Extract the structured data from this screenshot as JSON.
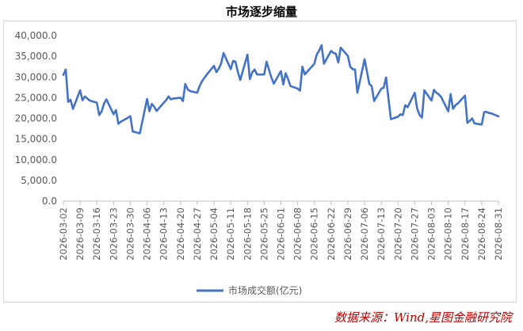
{
  "chart_data": {
    "type": "line",
    "title": "市场逐步缩量",
    "ylim": [
      0,
      40000
    ],
    "yticks": [
      "0.0",
      "5,000.0",
      "10,000.0",
      "15,000.0",
      "20,000.0",
      "25,000.0",
      "30,000.0",
      "35,000.0",
      "40,000.0"
    ],
    "grid": false,
    "legend": "bottom",
    "xtick_labels": [
      "2026-03-02",
      "2026-03-09",
      "2026-03-16",
      "2026-03-23",
      "2026-03-30",
      "2026-04-06",
      "2026-04-13",
      "2026-04-20",
      "2026-04-27",
      "2026-05-04",
      "2026-05-11",
      "2026-05-18",
      "2026-05-25",
      "2026-06-01",
      "2026-06-08",
      "2026-06-15",
      "2026-06-22",
      "2026-06-29",
      "2026-07-06",
      "2026-07-13",
      "2026-07-20",
      "2026-07-27",
      "2026-08-03",
      "2026-08-10",
      "2026-08-17",
      "2026-08-24",
      "2026-08-31"
    ],
    "line_color": "#4472c4",
    "series": [
      {
        "name": "市场成交额(亿元)",
        "x": [
          "2026-03-02",
          "2026-03-03",
          "2026-03-04",
          "2026-03-05",
          "2026-03-06",
          "2026-03-09",
          "2026-03-10",
          "2026-03-11",
          "2026-03-12",
          "2026-03-13",
          "2026-03-16",
          "2026-03-17",
          "2026-03-18",
          "2026-03-19",
          "2026-03-20",
          "2026-03-23",
          "2026-03-24",
          "2026-03-25",
          "2026-03-26",
          "2026-03-27",
          "2026-03-30",
          "2026-03-31",
          "2026-04-01",
          "2026-04-02",
          "2026-04-03",
          "2026-04-06",
          "2026-04-07",
          "2026-04-08",
          "2026-04-09",
          "2026-04-10",
          "2026-04-13",
          "2026-04-14",
          "2026-04-15",
          "2026-04-16",
          "2026-04-17",
          "2026-04-20",
          "2026-04-21",
          "2026-04-22",
          "2026-04-23",
          "2026-04-24",
          "2026-04-27",
          "2026-04-28",
          "2026-04-29",
          "2026-04-30",
          "2026-05-01",
          "2026-05-04",
          "2026-05-05",
          "2026-05-06",
          "2026-05-07",
          "2026-05-08",
          "2026-05-11",
          "2026-05-12",
          "2026-05-13",
          "2026-05-14",
          "2026-05-15",
          "2026-05-18",
          "2026-05-19",
          "2026-05-20",
          "2026-05-21",
          "2026-05-22",
          "2026-05-25",
          "2026-05-26",
          "2026-05-27",
          "2026-05-28",
          "2026-05-29",
          "2026-06-01",
          "2026-06-02",
          "2026-06-03",
          "2026-06-04",
          "2026-06-05",
          "2026-06-08",
          "2026-06-09",
          "2026-06-10",
          "2026-06-11",
          "2026-06-12",
          "2026-06-15",
          "2026-06-16",
          "2026-06-17",
          "2026-06-18",
          "2026-06-19",
          "2026-06-22",
          "2026-06-23",
          "2026-06-24",
          "2026-06-25",
          "2026-06-26",
          "2026-06-29",
          "2026-06-30",
          "2026-07-01",
          "2026-07-02",
          "2026-07-03",
          "2026-07-06",
          "2026-07-07",
          "2026-07-08",
          "2026-07-09",
          "2026-07-10",
          "2026-07-13",
          "2026-07-14",
          "2026-07-15",
          "2026-07-16",
          "2026-07-17",
          "2026-07-20",
          "2026-07-21",
          "2026-07-22",
          "2026-07-23",
          "2026-07-24",
          "2026-07-27",
          "2026-07-28",
          "2026-07-29",
          "2026-07-30",
          "2026-07-31",
          "2026-08-03",
          "2026-08-04",
          "2026-08-05",
          "2026-08-06",
          "2026-08-07",
          "2026-08-10",
          "2026-08-11",
          "2026-08-12",
          "2026-08-13",
          "2026-08-14",
          "2026-08-17",
          "2026-08-18",
          "2026-08-19",
          "2026-08-20",
          "2026-08-21",
          "2026-08-24",
          "2026-08-25",
          "2026-08-26",
          "2026-08-27",
          "2026-08-28",
          "2026-08-31"
        ],
        "values": [
          30500,
          31800,
          24000,
          24500,
          22300,
          26800,
          24400,
          25300,
          24800,
          24300,
          23800,
          20800,
          21700,
          23600,
          24600,
          21000,
          22000,
          18700,
          19200,
          19500,
          20500,
          16800,
          16700,
          16500,
          16400,
          24700,
          21700,
          23500,
          22800,
          21800,
          23800,
          24400,
          25300,
          24600,
          24800,
          25000,
          24200,
          28300,
          27000,
          26600,
          26200,
          27800,
          29000,
          29800,
          30600,
          32700,
          31200,
          32000,
          33300,
          35800,
          31900,
          33900,
          33700,
          31200,
          29300,
          35400,
          29500,
          31100,
          31800,
          30600,
          30600,
          33700,
          31800,
          29900,
          28400,
          31400,
          28200,
          30900,
          29500,
          27800,
          27200,
          26700,
          32500,
          30600,
          31300,
          33200,
          35400,
          36400,
          37700,
          33200,
          36300,
          35800,
          35600,
          33500,
          37100,
          35100,
          32500,
          31900,
          31800,
          26200,
          34300,
          31300,
          28300,
          27800,
          24200,
          27200,
          27400,
          29900,
          24800,
          19800,
          20400,
          21000,
          20800,
          23200,
          22700,
          26200,
          22400,
          20800,
          20200,
          26800,
          24300,
          26900,
          26200,
          25800,
          25200,
          21700,
          25900,
          22300,
          23200,
          23600,
          25500,
          18900,
          19400,
          20000,
          18800,
          18500,
          21500,
          21600,
          21300,
          21200,
          20500
        ]
      }
    ]
  },
  "source": "数据来源：Wind,星图金融研究院"
}
